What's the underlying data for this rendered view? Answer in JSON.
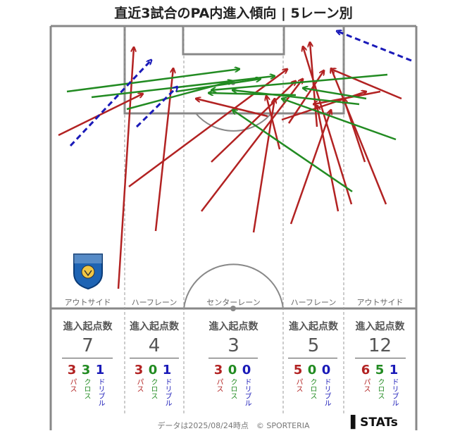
{
  "title": "直近3試合のPA内進入傾向 | 5レーン別",
  "lanes": [
    {
      "label": "アウトサイド",
      "head": "進入起点数",
      "total": "7",
      "pass": "3",
      "cross": "3",
      "dribble": "1"
    },
    {
      "label": "ハーフレーン",
      "head": "進入起点数",
      "total": "4",
      "pass": "3",
      "cross": "0",
      "dribble": "1"
    },
    {
      "label": "センターレーン",
      "head": "進入起点数",
      "total": "3",
      "pass": "3",
      "cross": "0",
      "dribble": "0"
    },
    {
      "label": "ハーフレーン",
      "head": "進入起点数",
      "total": "5",
      "pass": "5",
      "cross": "0",
      "dribble": "0"
    },
    {
      "label": "アウトサイド",
      "head": "進入起点数",
      "total": "12",
      "pass": "6",
      "cross": "5",
      "dribble": "1"
    }
  ],
  "legend": {
    "pass": "パス",
    "cross": "クロス",
    "dribble": "ドリブル"
  },
  "colors": {
    "pass": "#b22222",
    "cross": "#228b22",
    "dribble": "#1a1ab8",
    "pitch_line": "#888888"
  },
  "logo": {
    "top_text": "AKITA",
    "bottom_text": "BLAUBLITZ"
  },
  "footer": "データは2025/08/24時点　© SPORTERIA",
  "brand": "STATs"
}
